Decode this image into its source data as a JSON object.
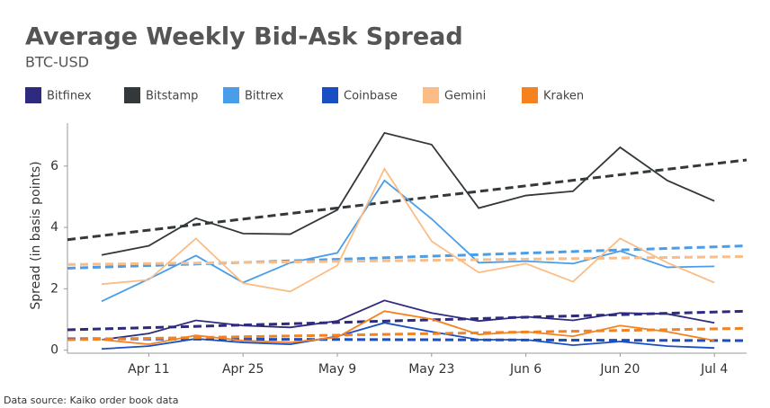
{
  "chart_data": {
    "type": "line",
    "title": "Average Weekly Bid-Ask Spread",
    "subtitle": "BTC-USD",
    "y_label": "Spread (in basis points)",
    "source": "Data source: Kaiko order book data",
    "categories": [
      null,
      "Apr 11",
      null,
      "Apr 25",
      null,
      "May 9",
      null,
      "May 23",
      null,
      "Jun 6",
      null,
      "Jun 20",
      null,
      "Jul 4"
    ],
    "ylim": [
      -0.1,
      7.4
    ],
    "yticks": [
      0,
      2,
      4,
      6
    ],
    "series": [
      {
        "name": "Bitfinex",
        "color": "#2e2a7f",
        "values": [
          0.34,
          0.54,
          0.97,
          0.8,
          0.74,
          0.95,
          1.62,
          1.21,
          0.95,
          1.09,
          0.97,
          1.21,
          1.18,
          0.89
        ],
        "trend": [
          0.66,
          1.27
        ]
      },
      {
        "name": "Bitstamp",
        "color": "#33383b",
        "values": [
          3.1,
          3.4,
          4.3,
          3.8,
          3.78,
          4.57,
          7.08,
          6.7,
          4.63,
          5.04,
          5.18,
          6.61,
          5.53,
          4.86
        ],
        "trend": [
          3.6,
          6.2
        ]
      },
      {
        "name": "Bittrex",
        "color": "#4a9de8",
        "values": [
          1.59,
          2.32,
          3.08,
          2.2,
          2.85,
          3.17,
          5.53,
          4.28,
          2.85,
          2.9,
          2.82,
          3.23,
          2.7,
          2.73
        ],
        "trend": [
          2.67,
          3.4
        ]
      },
      {
        "name": "Coinbase",
        "color": "#1a4fc4",
        "values": [
          0.04,
          0.13,
          0.37,
          0.25,
          0.19,
          0.45,
          0.89,
          0.6,
          0.34,
          0.34,
          0.16,
          0.28,
          0.13,
          0.07
        ],
        "trend": [
          0.37,
          0.31
        ]
      },
      {
        "name": "Gemini",
        "color": "#fbbd85",
        "values": [
          2.15,
          2.29,
          3.64,
          2.18,
          1.91,
          2.76,
          5.91,
          3.55,
          2.53,
          2.82,
          2.23,
          3.64,
          2.85,
          2.2
        ],
        "trend": [
          2.79,
          3.05
        ]
      },
      {
        "name": "Kraken",
        "color": "#f5821f",
        "values": [
          0.34,
          0.19,
          0.48,
          0.31,
          0.25,
          0.42,
          1.27,
          1.01,
          0.51,
          0.6,
          0.45,
          0.8,
          0.6,
          0.31
        ],
        "trend": [
          0.34,
          0.71
        ]
      }
    ]
  }
}
